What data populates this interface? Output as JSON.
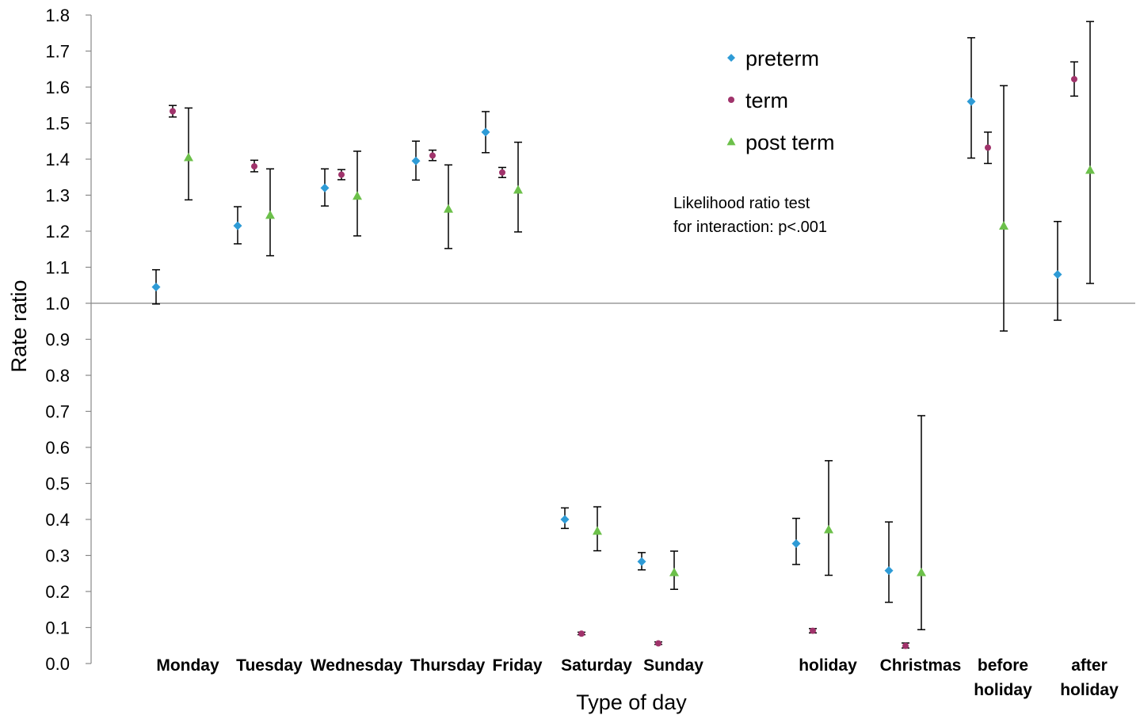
{
  "chart_data": {
    "type": "scatter",
    "xlabel": "Type of day",
    "ylabel": "Rate ratio",
    "ylim": [
      0.0,
      1.8
    ],
    "yticks": [
      "0.0",
      "0.1",
      "0.2",
      "0.3",
      "0.4",
      "0.5",
      "0.6",
      "0.7",
      "0.8",
      "0.9",
      "1.0",
      "1.1",
      "1.2",
      "1.3",
      "1.4",
      "1.5",
      "1.6",
      "1.7",
      "1.8"
    ],
    "reference_line": 1.0,
    "grid": false,
    "legend_position": "top-right",
    "categories": [
      {
        "lines": [
          "Monday"
        ]
      },
      {
        "lines": [
          "Tuesday"
        ]
      },
      {
        "lines": [
          "Wednesday"
        ]
      },
      {
        "lines": [
          "Thursday"
        ]
      },
      {
        "lines": [
          "Friday"
        ]
      },
      {
        "lines": [
          "Saturday"
        ]
      },
      {
        "lines": [
          "Sunday"
        ]
      },
      {
        "lines": [
          "holiday"
        ]
      },
      {
        "lines": [
          "Christmas"
        ]
      },
      {
        "lines": [
          "before",
          "holiday"
        ]
      },
      {
        "lines": [
          "after",
          "holiday"
        ]
      }
    ],
    "series": [
      {
        "name": "preterm",
        "marker": "diamond",
        "color": "#2E9BD6",
        "values": [
          1.045,
          1.215,
          1.32,
          1.395,
          1.475,
          0.4,
          0.283,
          0.333,
          0.258,
          1.56,
          1.08
        ],
        "lower": [
          0.998,
          1.165,
          1.27,
          1.342,
          1.418,
          0.375,
          0.26,
          0.275,
          0.17,
          1.403,
          0.953
        ],
        "upper": [
          1.093,
          1.268,
          1.373,
          1.45,
          1.532,
          0.432,
          0.308,
          0.403,
          0.393,
          1.737,
          1.227
        ]
      },
      {
        "name": "term",
        "marker": "circle",
        "color": "#A0336B",
        "values": [
          1.533,
          1.38,
          1.357,
          1.41,
          1.363,
          0.083,
          0.056,
          0.091,
          0.049,
          1.432,
          1.622
        ],
        "lower": [
          1.517,
          1.365,
          1.343,
          1.396,
          1.349,
          0.08,
          0.053,
          0.085,
          0.043,
          1.388,
          1.575
        ],
        "upper": [
          1.549,
          1.397,
          1.371,
          1.425,
          1.377,
          0.087,
          0.06,
          0.097,
          0.057,
          1.475,
          1.67
        ]
      },
      {
        "name": "post term",
        "marker": "triangle",
        "color": "#6CC04A",
        "values": [
          1.405,
          1.245,
          1.298,
          1.262,
          1.315,
          0.368,
          0.253,
          0.372,
          0.253,
          1.215,
          1.37
        ],
        "lower": [
          1.287,
          1.132,
          1.187,
          1.152,
          1.198,
          0.313,
          0.206,
          0.245,
          0.094,
          0.923,
          1.055
        ],
        "upper": [
          1.542,
          1.373,
          1.422,
          1.384,
          1.447,
          0.435,
          0.312,
          0.563,
          0.688,
          1.604,
          1.782
        ]
      }
    ],
    "annotation": [
      "Likelihood ratio test",
      "for interaction: p<.001"
    ]
  }
}
